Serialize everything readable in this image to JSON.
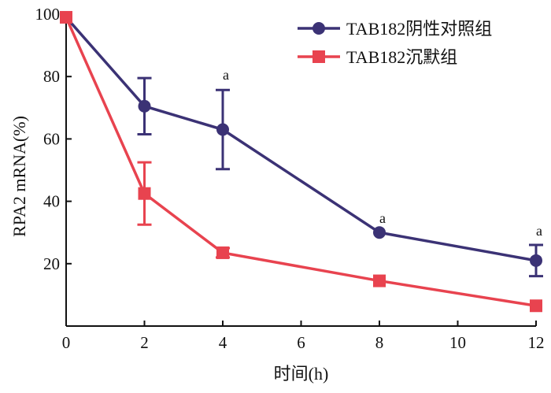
{
  "chart_data": {
    "type": "line",
    "x": [
      0,
      2,
      4,
      8,
      12
    ],
    "xlabel": "时间(h)",
    "ylabel": "RPA2 mRNA(%)",
    "xticks": [
      0,
      2,
      4,
      6,
      8,
      10,
      12
    ],
    "yticks": [
      20,
      40,
      60,
      80,
      100
    ],
    "xlim": [
      0,
      12
    ],
    "ylim": [
      0,
      100
    ],
    "grid": false,
    "legend_position": "top-right",
    "series": [
      {
        "name": "TAB182阴性对照组",
        "color": "#3b3275",
        "marker": "circle",
        "values": [
          99,
          70.5,
          63,
          30,
          21
        ],
        "errors": [
          0,
          9,
          12.7,
          0,
          5
        ]
      },
      {
        "name": "TAB182沉默组",
        "color": "#e8434f",
        "marker": "square",
        "values": [
          99,
          42.5,
          23.5,
          14.5,
          6.5
        ],
        "errors": [
          0,
          10,
          1.5,
          0,
          0
        ]
      }
    ],
    "annotations": [
      {
        "x": 4,
        "y": 76,
        "text": "a"
      },
      {
        "x": 8,
        "y": 30,
        "text": "a"
      },
      {
        "x": 12,
        "y": 26,
        "text": "a"
      }
    ]
  }
}
